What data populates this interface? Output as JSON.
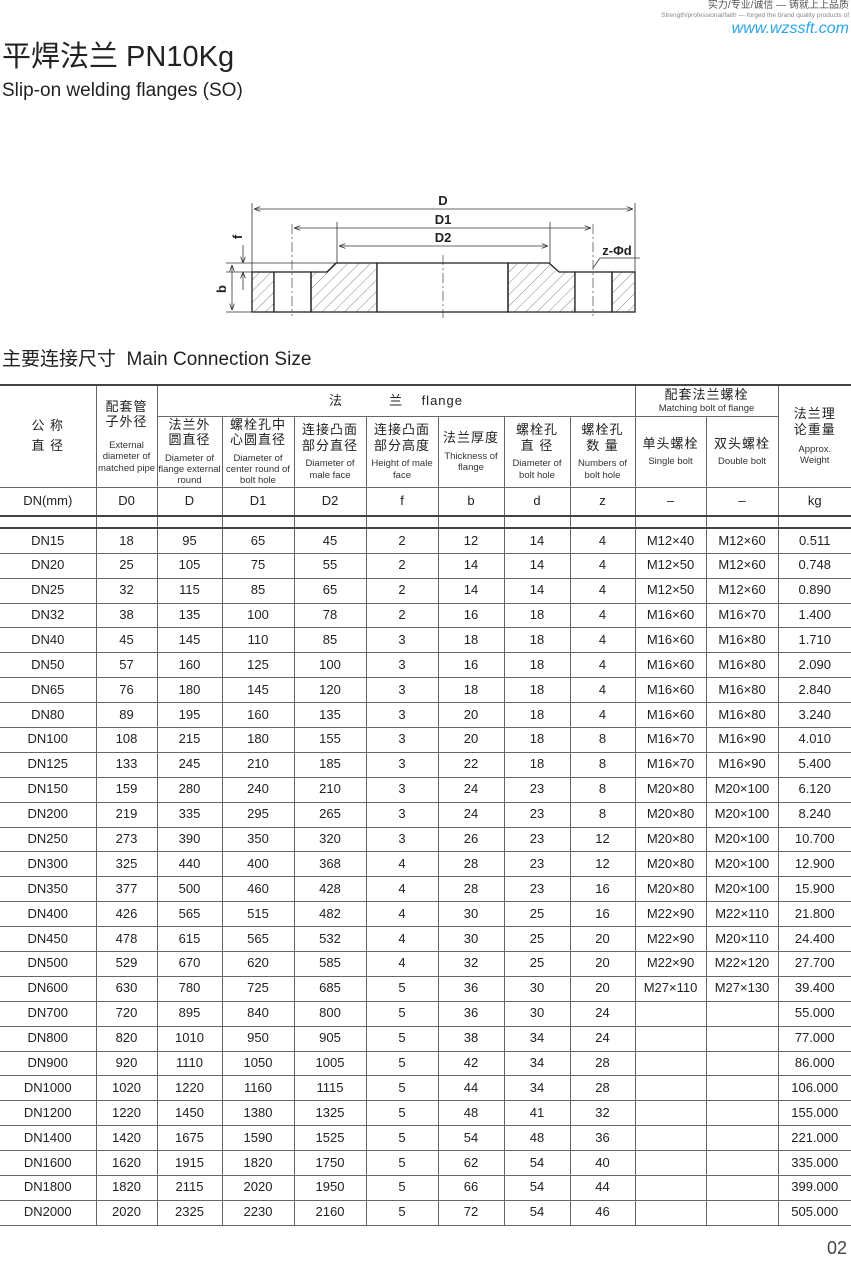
{
  "header": {
    "slogan_cn": "实力/专业/诚信 — 铸就上上品质",
    "slogan_en": "Strength/professional/faith — forged the brand quality products of",
    "url": "www.wzssft.com"
  },
  "title": "平焊法兰 PN10Kg",
  "subtitle": "Slip-on welding flanges (SO)",
  "diagram": {
    "labels": {
      "D": "D",
      "D1": "D1",
      "D2": "D2",
      "f": "f",
      "b": "b",
      "zd": "z-Φd"
    }
  },
  "section_title": "主要连接尺寸  Main Connection Size",
  "table": {
    "h_dn_cn": "公 称\n直 径",
    "h_d0_cn": "配套管\n子外径",
    "h_d0_en": "External diameter of matched pipe",
    "h_flange": "法          兰    flange",
    "h_bolt_cn": "配套法兰螺栓",
    "h_bolt_en": "Matching bolt of flange",
    "h_wt_cn": "法兰理\n论重量",
    "h_wt_en": "Approx. Weight",
    "sub": [
      {
        "cn": "法兰外\n圆直径",
        "en": "Diameter of flange external round"
      },
      {
        "cn": "螺栓孔中\n心圆直径",
        "en": "Diameter of center round of bolt hole"
      },
      {
        "cn": "连接凸面\n部分直径",
        "en": "Diameter of male face"
      },
      {
        "cn": "连接凸面\n部分高度",
        "en": "Height of male face"
      },
      {
        "cn": "法兰厚度",
        "en": "Thickness of flange"
      },
      {
        "cn": "螺栓孔\n直  径",
        "en": "Diameter of bolt hole"
      },
      {
        "cn": "螺栓孔\n数  量",
        "en": "Numbers of bolt hole"
      },
      {
        "cn": "单头螺栓",
        "en": "Single bolt"
      },
      {
        "cn": "双头螺栓",
        "en": "Double bolt"
      }
    ],
    "units": [
      "DN(mm)",
      "D0",
      "D",
      "D1",
      "D2",
      "f",
      "b",
      "d",
      "z",
      "–",
      "–",
      "kg"
    ],
    "rows": [
      [
        "DN15",
        "18",
        "95",
        "65",
        "45",
        "2",
        "12",
        "14",
        "4",
        "M12×40",
        "M12×60",
        "0.511"
      ],
      [
        "DN20",
        "25",
        "105",
        "75",
        "55",
        "2",
        "14",
        "14",
        "4",
        "M12×50",
        "M12×60",
        "0.748"
      ],
      [
        "DN25",
        "32",
        "115",
        "85",
        "65",
        "2",
        "14",
        "14",
        "4",
        "M12×50",
        "M12×60",
        "0.890"
      ],
      [
        "DN32",
        "38",
        "135",
        "100",
        "78",
        "2",
        "16",
        "18",
        "4",
        "M16×60",
        "M16×70",
        "1.400"
      ],
      [
        "DN40",
        "45",
        "145",
        "110",
        "85",
        "3",
        "18",
        "18",
        "4",
        "M16×60",
        "M16×80",
        "1.710"
      ],
      [
        "DN50",
        "57",
        "160",
        "125",
        "100",
        "3",
        "16",
        "18",
        "4",
        "M16×60",
        "M16×80",
        "2.090"
      ],
      [
        "DN65",
        "76",
        "180",
        "145",
        "120",
        "3",
        "18",
        "18",
        "4",
        "M16×60",
        "M16×80",
        "2.840"
      ],
      [
        "DN80",
        "89",
        "195",
        "160",
        "135",
        "3",
        "20",
        "18",
        "4",
        "M16×60",
        "M16×80",
        "3.240"
      ],
      [
        "DN100",
        "108",
        "215",
        "180",
        "155",
        "3",
        "20",
        "18",
        "8",
        "M16×70",
        "M16×90",
        "4.010"
      ],
      [
        "DN125",
        "133",
        "245",
        "210",
        "185",
        "3",
        "22",
        "18",
        "8",
        "M16×70",
        "M16×90",
        "5.400"
      ],
      [
        "DN150",
        "159",
        "280",
        "240",
        "210",
        "3",
        "24",
        "23",
        "8",
        "M20×80",
        "M20×100",
        "6.120"
      ],
      [
        "DN200",
        "219",
        "335",
        "295",
        "265",
        "3",
        "24",
        "23",
        "8",
        "M20×80",
        "M20×100",
        "8.240"
      ],
      [
        "DN250",
        "273",
        "390",
        "350",
        "320",
        "3",
        "26",
        "23",
        "12",
        "M20×80",
        "M20×100",
        "10.700"
      ],
      [
        "DN300",
        "325",
        "440",
        "400",
        "368",
        "4",
        "28",
        "23",
        "12",
        "M20×80",
        "M20×100",
        "12.900"
      ],
      [
        "DN350",
        "377",
        "500",
        "460",
        "428",
        "4",
        "28",
        "23",
        "16",
        "M20×80",
        "M20×100",
        "15.900"
      ],
      [
        "DN400",
        "426",
        "565",
        "515",
        "482",
        "4",
        "30",
        "25",
        "16",
        "M22×90",
        "M22×110",
        "21.800"
      ],
      [
        "DN450",
        "478",
        "615",
        "565",
        "532",
        "4",
        "30",
        "25",
        "20",
        "M22×90",
        "M20×110",
        "24.400"
      ],
      [
        "DN500",
        "529",
        "670",
        "620",
        "585",
        "4",
        "32",
        "25",
        "20",
        "M22×90",
        "M22×120",
        "27.700"
      ],
      [
        "DN600",
        "630",
        "780",
        "725",
        "685",
        "5",
        "36",
        "30",
        "20",
        "M27×110",
        "M27×130",
        "39.400"
      ],
      [
        "DN700",
        "720",
        "895",
        "840",
        "800",
        "5",
        "36",
        "30",
        "24",
        "",
        "",
        "55.000"
      ],
      [
        "DN800",
        "820",
        "1010",
        "950",
        "905",
        "5",
        "38",
        "34",
        "24",
        "",
        "",
        "77.000"
      ],
      [
        "DN900",
        "920",
        "1110",
        "1050",
        "1005",
        "5",
        "42",
        "34",
        "28",
        "",
        "",
        "86.000"
      ],
      [
        "DN1000",
        "1020",
        "1220",
        "1160",
        "1115",
        "5",
        "44",
        "34",
        "28",
        "",
        "",
        "106.000"
      ],
      [
        "DN1200",
        "1220",
        "1450",
        "1380",
        "1325",
        "5",
        "48",
        "41",
        "32",
        "",
        "",
        "155.000"
      ],
      [
        "DN1400",
        "1420",
        "1675",
        "1590",
        "1525",
        "5",
        "54",
        "48",
        "36",
        "",
        "",
        "221.000"
      ],
      [
        "DN1600",
        "1620",
        "1915",
        "1820",
        "1750",
        "5",
        "62",
        "54",
        "40",
        "",
        "",
        "335.000"
      ],
      [
        "DN1800",
        "1820",
        "2115",
        "2020",
        "1950",
        "5",
        "66",
        "54",
        "44",
        "",
        "",
        "399.000"
      ],
      [
        "DN2000",
        "2020",
        "2325",
        "2230",
        "2160",
        "5",
        "72",
        "54",
        "46",
        "",
        "",
        "505.000"
      ]
    ]
  },
  "page_number": "02"
}
